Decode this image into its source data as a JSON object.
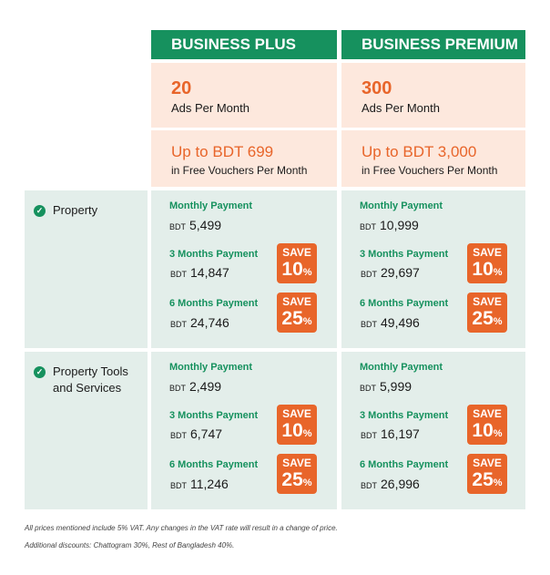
{
  "plans": [
    {
      "name": "BUSINESS PLUS",
      "ads_count": "20",
      "ads_label": "Ads Per Month",
      "voucher_amount": "Up to BDT 699",
      "voucher_label": "in Free Vouchers Per Month",
      "sections": [
        {
          "monthly": {
            "label": "Monthly Payment",
            "currency": "BDT",
            "amount": "5,499"
          },
          "three": {
            "label": "3 Months Payment",
            "currency": "BDT",
            "amount": "14,847",
            "save": "SAVE",
            "pct": "10",
            "pct_sign": "%"
          },
          "six": {
            "label": "6 Months Payment",
            "currency": "BDT",
            "amount": "24,746",
            "save": "SAVE",
            "pct": "25",
            "pct_sign": "%"
          }
        },
        {
          "monthly": {
            "label": "Monthly Payment",
            "currency": "BDT",
            "amount": "2,499"
          },
          "three": {
            "label": "3 Months Payment",
            "currency": "BDT",
            "amount": "6,747",
            "save": "SAVE",
            "pct": "10",
            "pct_sign": "%"
          },
          "six": {
            "label": "6 Months Payment",
            "currency": "BDT",
            "amount": "11,246",
            "save": "SAVE",
            "pct": "25",
            "pct_sign": "%"
          }
        }
      ]
    },
    {
      "name": "BUSINESS PREMIUM",
      "ads_count": "300",
      "ads_label": "Ads Per Month",
      "voucher_amount": "Up to BDT 3,000",
      "voucher_label": "in Free Vouchers Per Month",
      "sections": [
        {
          "monthly": {
            "label": "Monthly Payment",
            "currency": "BDT",
            "amount": "10,999"
          },
          "three": {
            "label": "3 Months Payment",
            "currency": "BDT",
            "amount": "29,697",
            "save": "SAVE",
            "pct": "10",
            "pct_sign": "%"
          },
          "six": {
            "label": "6 Months Payment",
            "currency": "BDT",
            "amount": "49,496",
            "save": "SAVE",
            "pct": "25",
            "pct_sign": "%"
          }
        },
        {
          "monthly": {
            "label": "Monthly Payment",
            "currency": "BDT",
            "amount": "5,999"
          },
          "three": {
            "label": "3 Months Payment",
            "currency": "BDT",
            "amount": "16,197",
            "save": "SAVE",
            "pct": "10",
            "pct_sign": "%"
          },
          "six": {
            "label": "6 Months Payment",
            "currency": "BDT",
            "amount": "26,996",
            "save": "SAVE",
            "pct": "25",
            "pct_sign": "%"
          }
        }
      ]
    }
  ],
  "section_labels": [
    "Property",
    "Property Tools and Services"
  ],
  "check_icon": "check-circle-icon",
  "notes": [
    "All prices mentioned include 5% VAT. Any changes in the VAT rate will result in a change of price.",
    "Additional discounts: Chattogram 30%, Rest of Bangladesh 40%."
  ],
  "colors": {
    "brand_green": "#16915e",
    "accent_orange": "#e8652a",
    "peach": "#fde8dd",
    "mint": "#e3eeea"
  }
}
